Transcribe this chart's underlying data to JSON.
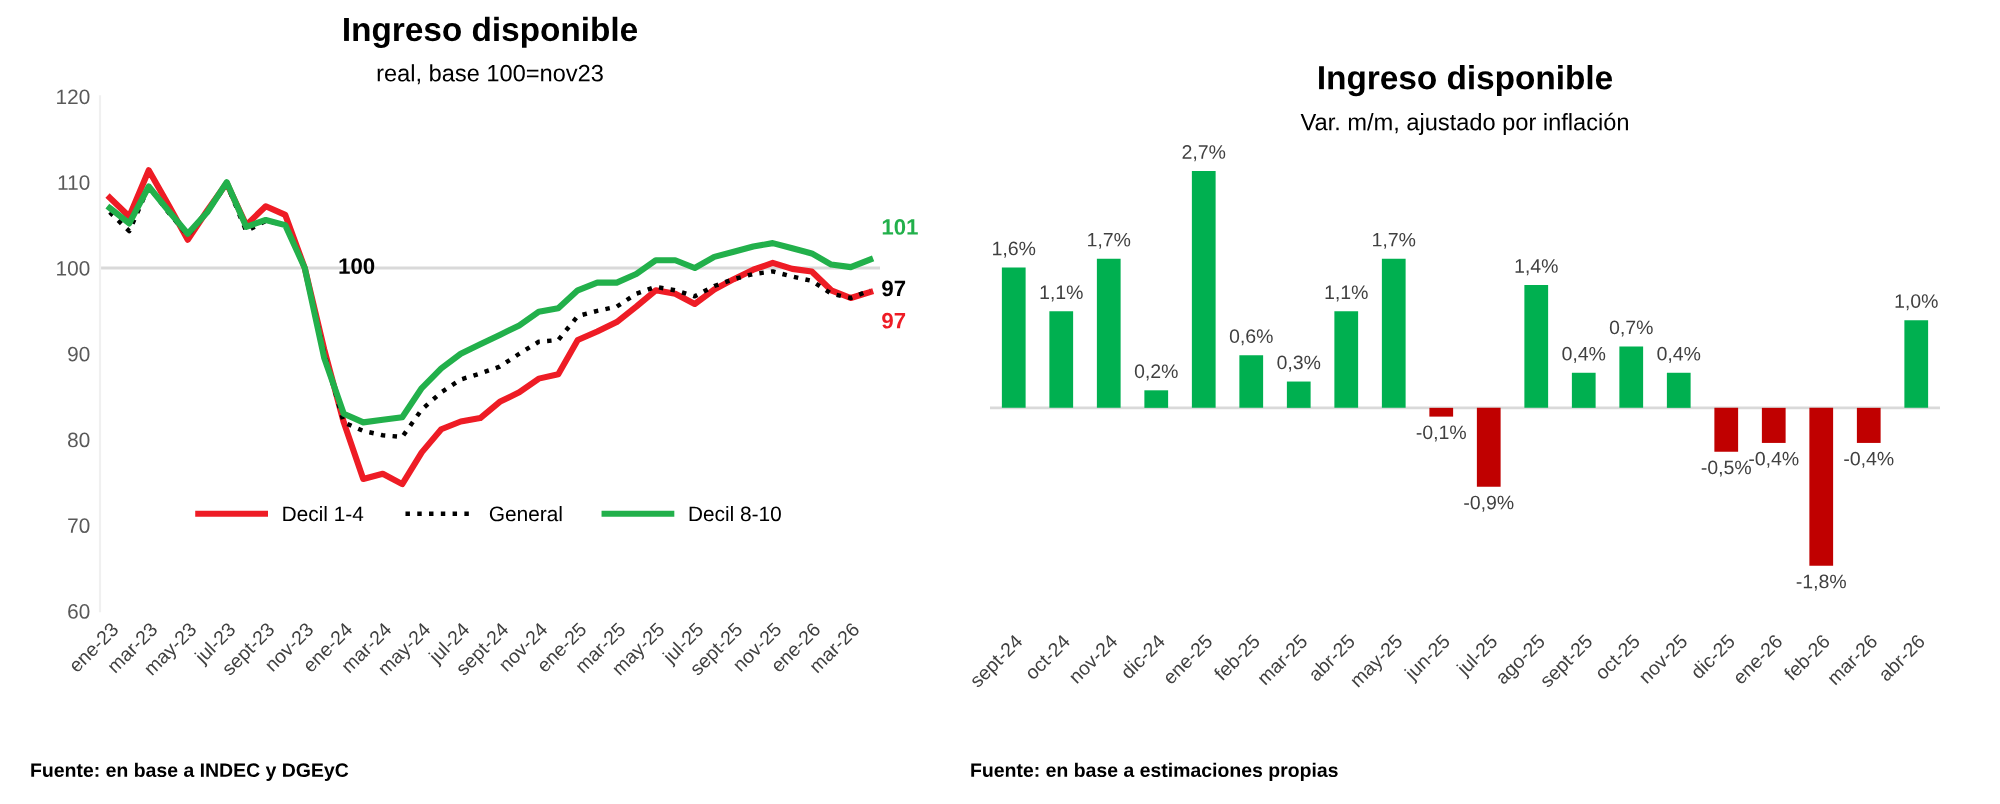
{
  "chart_data": [
    {
      "type": "line",
      "title": "Ingreso disponible",
      "subtitle": "real, base 100=nov23",
      "categories": [
        "ene-23",
        null,
        "mar-23",
        null,
        "may-23",
        null,
        "jul-23",
        null,
        "sept-23",
        null,
        "nov-23",
        null,
        "ene-24",
        null,
        "mar-24",
        null,
        "may-24",
        null,
        "jul-24",
        null,
        "sept-24",
        null,
        "nov-24",
        null,
        "ene-25",
        null,
        "mar-25",
        null,
        "may-25",
        null,
        "jul-25",
        null,
        "sept-25",
        null,
        "nov-25",
        null,
        "ene-26",
        null,
        "mar-26",
        null
      ],
      "series": [
        {
          "name": "Decil 1-4",
          "color": "#ee1c25",
          "line_style": "solid",
          "values": [
            108.2,
            106.0,
            111.4,
            107.4,
            103.3,
            106.7,
            109.9,
            105.0,
            107.2,
            106.2,
            100.0,
            90.5,
            82.0,
            75.4,
            76.0,
            74.8,
            78.5,
            81.2,
            82.1,
            82.5,
            84.4,
            85.5,
            87.1,
            87.6,
            91.6,
            92.6,
            93.7,
            95.5,
            97.4,
            97.0,
            95.8,
            97.5,
            98.7,
            99.8,
            100.6,
            99.9,
            99.6,
            97.4,
            96.5,
            97.2
          ],
          "value_labels": [
            null,
            null,
            null,
            null,
            null,
            null,
            null,
            null,
            null,
            null,
            null,
            null,
            null,
            null,
            null,
            null,
            null,
            null,
            null,
            null,
            null,
            null,
            null,
            null,
            null,
            null,
            null,
            null,
            null,
            null,
            null,
            null,
            null,
            null,
            null,
            null,
            null,
            null,
            null,
            "97"
          ]
        },
        {
          "name": "General",
          "color": "#000000",
          "line_style": "dotted",
          "values": [
            106.5,
            104.3,
            109.5,
            106.5,
            103.8,
            106.5,
            109.8,
            104.3,
            105.5,
            105.0,
            100.0,
            90.0,
            82.0,
            81.0,
            80.5,
            80.3,
            83.5,
            85.5,
            87.0,
            87.7,
            88.5,
            90.0,
            91.4,
            91.6,
            94.4,
            95.0,
            95.5,
            97.0,
            97.8,
            97.4,
            96.7,
            97.9,
            98.7,
            99.3,
            99.6,
            99.0,
            98.5,
            97.0,
            96.5,
            97.4
          ],
          "value_labels": [
            null,
            null,
            null,
            null,
            null,
            null,
            null,
            null,
            null,
            null,
            "100",
            null,
            null,
            null,
            null,
            null,
            null,
            null,
            null,
            null,
            null,
            null,
            null,
            null,
            null,
            null,
            null,
            null,
            null,
            null,
            null,
            null,
            null,
            null,
            null,
            null,
            null,
            null,
            null,
            "97"
          ]
        },
        {
          "name": "Decil 8-10",
          "color": "#22b04b",
          "line_style": "solid",
          "values": [
            107.0,
            105.2,
            109.5,
            106.7,
            104.0,
            106.5,
            110.0,
            104.8,
            105.6,
            105.0,
            100.0,
            89.5,
            83.0,
            82.0,
            82.3,
            82.6,
            86.0,
            88.3,
            90.0,
            91.1,
            92.2,
            93.3,
            94.9,
            95.3,
            97.4,
            98.3,
            98.3,
            99.3,
            100.9,
            100.9,
            100.0,
            101.3,
            101.9,
            102.5,
            102.9,
            102.3,
            101.7,
            100.4,
            100.1,
            101.0
          ],
          "value_labels": [
            null,
            null,
            null,
            null,
            null,
            null,
            null,
            null,
            null,
            null,
            null,
            null,
            null,
            null,
            null,
            null,
            null,
            null,
            null,
            null,
            null,
            null,
            null,
            null,
            null,
            null,
            null,
            null,
            null,
            null,
            null,
            null,
            null,
            null,
            null,
            null,
            null,
            null,
            null,
            "101"
          ]
        }
      ],
      "ylim": [
        60,
        120
      ],
      "yticks": [
        60,
        70,
        80,
        90,
        100,
        110,
        120
      ],
      "ref_lines": [
        {
          "axis": "y",
          "value": 100,
          "color": "#d9d9d9"
        }
      ],
      "legend": "bottom",
      "marker": "none",
      "grid": false,
      "annotations": [
        "Fuente: en base a INDEC y DGEyC"
      ]
    },
    {
      "type": "bar",
      "title": "Ingreso disponible",
      "subtitle": "Var. m/m, ajustado por inflación",
      "categories": [
        "sept-24",
        "oct-24",
        "nov-24",
        "dic-24",
        "ene-25",
        "feb-25",
        "mar-25",
        "abr-25",
        "may-25",
        "jun-25",
        "jul-25",
        "ago-25",
        "sept-25",
        "oct-25",
        "nov-25",
        "dic-25",
        "ene-26",
        "feb-26",
        "mar-26",
        "abr-26"
      ],
      "values": [
        1.6,
        1.1,
        1.7,
        0.2,
        2.7,
        0.6,
        0.3,
        1.1,
        1.7,
        -0.1,
        -0.9,
        1.4,
        0.4,
        0.7,
        0.4,
        -0.5,
        -0.4,
        -1.8,
        -0.4,
        1.0
      ],
      "value_labels": [
        "1,6%",
        "1,1%",
        "1,7%",
        "0,2%",
        "2,7%",
        "0,6%",
        "0,3%",
        "1,1%",
        "1,7%",
        "-0,1%",
        "-0,9%",
        "1,4%",
        "0,4%",
        "0,7%",
        "0,4%",
        "-0,5%",
        "-0,4%",
        "-1,8%",
        "-0,4%",
        "1,0%"
      ],
      "colors": [
        "#00b050",
        "#00b050",
        "#00b050",
        "#00b050",
        "#00b050",
        "#00b050",
        "#00b050",
        "#00b050",
        "#00b050",
        "#c00000",
        "#c00000",
        "#00b050",
        "#00b050",
        "#00b050",
        "#00b050",
        "#c00000",
        "#c00000",
        "#c00000",
        "#c00000",
        "#00b050"
      ],
      "grid": false,
      "legend": false,
      "annotations": [
        "Fuente: en base a estimaciones propias"
      ]
    }
  ]
}
